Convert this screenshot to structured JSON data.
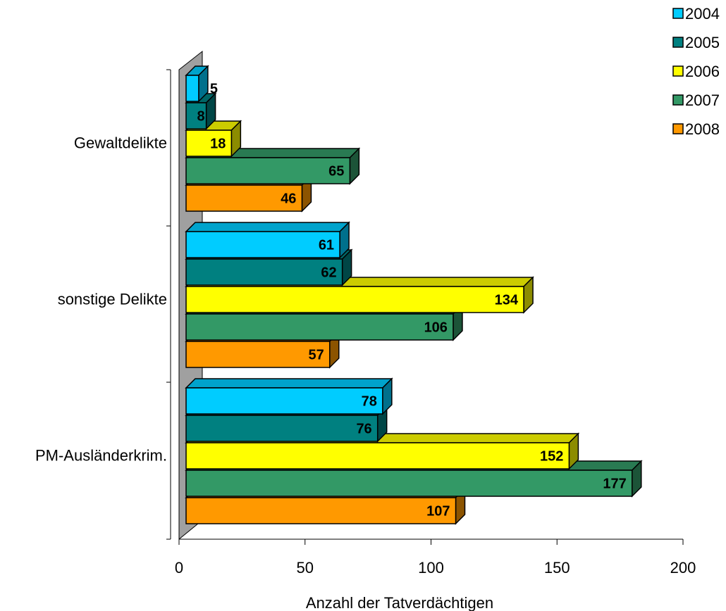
{
  "chart_data": {
    "type": "bar",
    "orientation": "horizontal",
    "style": "3d",
    "categories": [
      "Gewaltdelikte",
      "sonstige Delikte",
      "PM-Ausländerkrim."
    ],
    "series": [
      {
        "name": "2004",
        "values": [
          5,
          61,
          78
        ],
        "color": "#00CCFF"
      },
      {
        "name": "2005",
        "values": [
          8,
          62,
          76
        ],
        "color": "#008080"
      },
      {
        "name": "2006",
        "values": [
          18,
          134,
          152
        ],
        "color": "#FFFF00"
      },
      {
        "name": "2007",
        "values": [
          65,
          106,
          177
        ],
        "color": "#339966"
      },
      {
        "name": "2008",
        "values": [
          46,
          57,
          107
        ],
        "color": "#FF9900"
      }
    ],
    "xlabel": "Anzahl der Tatverdächtigen",
    "ylabel": "",
    "title": "",
    "xlim": [
      0,
      200
    ],
    "xticks": [
      0,
      50,
      100,
      150,
      200
    ],
    "grid": false,
    "legend_position": "top-right",
    "wall_color": "#A0A0A0"
  }
}
